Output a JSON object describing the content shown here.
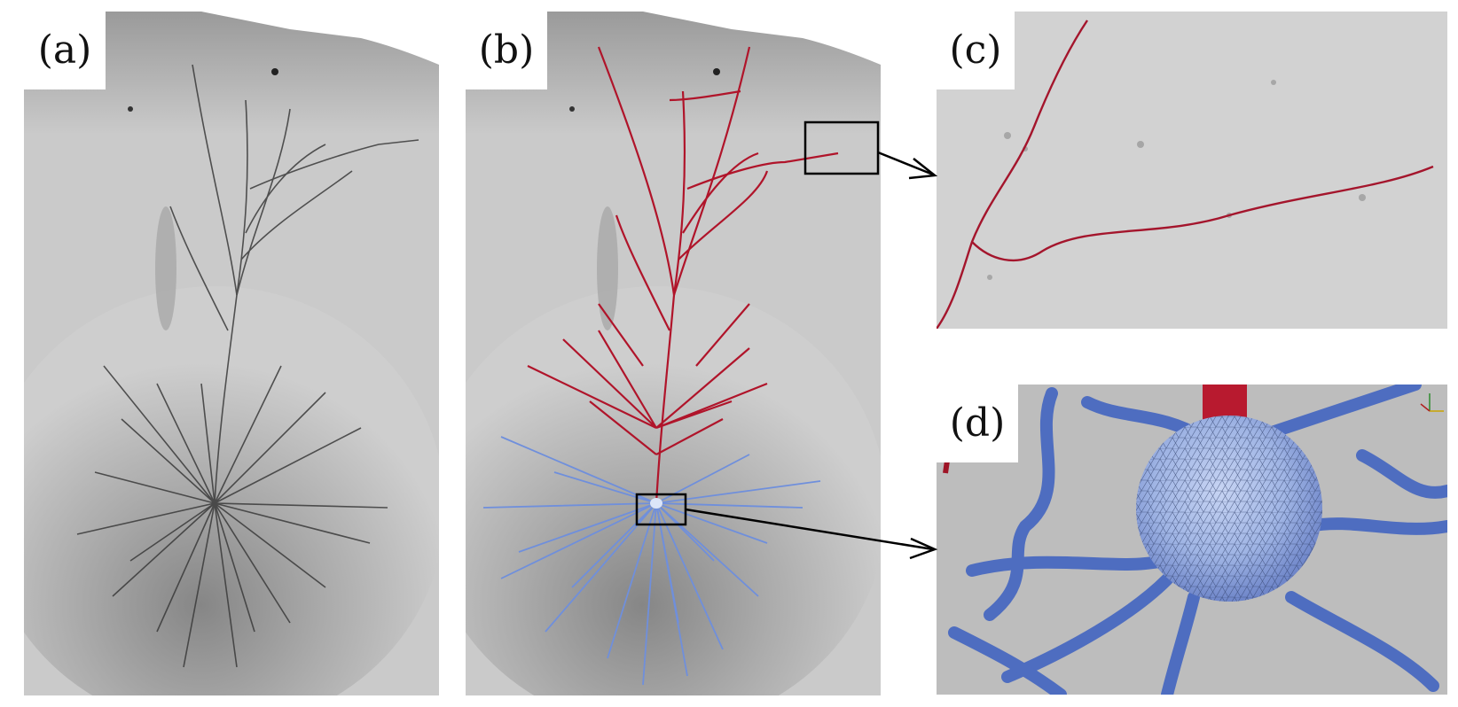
{
  "figure": {
    "panels": [
      {
        "id": "a",
        "label": "(a)"
      },
      {
        "id": "b",
        "label": "(b)"
      },
      {
        "id": "c",
        "label": "(c)"
      },
      {
        "id": "d",
        "label": "(d)"
      }
    ]
  },
  "colors": {
    "background": "#ffffff",
    "micrograph_gray": "#c8c8c8",
    "apical_dendrite_red": "#b0142a",
    "basal_dendrite_blue": "#6f8fdc",
    "mesh_blue": "#4e6dc0",
    "soma_light_blue": "#9fb4e4",
    "mesh_background": "#bdbdbd",
    "callout_black": "#000000"
  },
  "icons": {
    "callout_arrow_1": "arrow-icon",
    "callout_arrow_2": "arrow-icon",
    "axis_triad": "axes-triad-icon"
  }
}
